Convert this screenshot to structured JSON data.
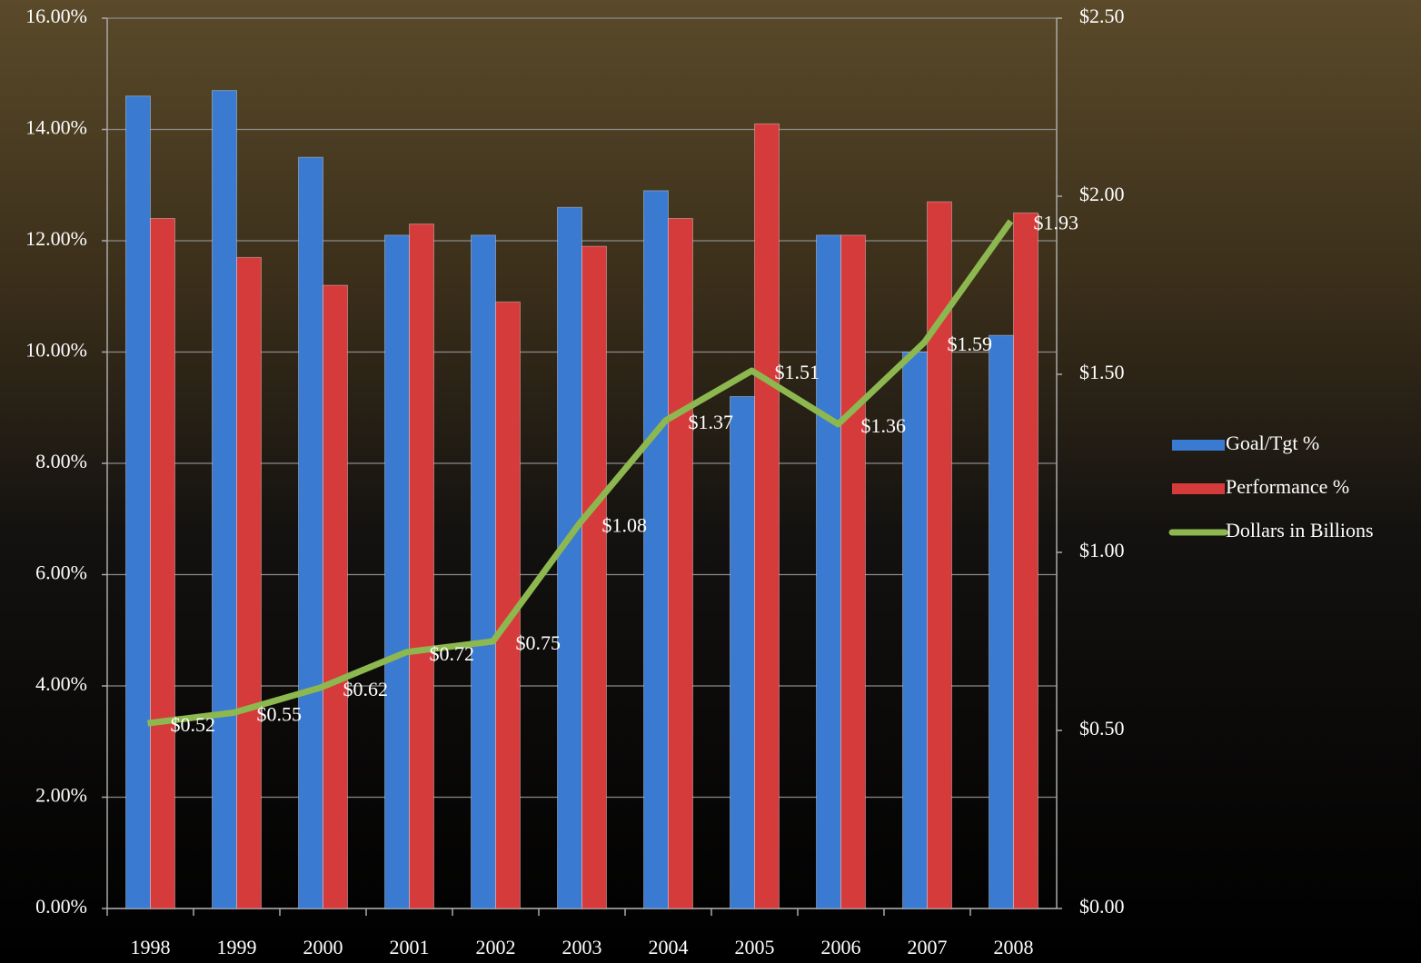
{
  "chart_data": {
    "type": "bar",
    "categories": [
      "1998",
      "1999",
      "2000",
      "2001",
      "2002",
      "2003",
      "2004",
      "2005",
      "2006",
      "2007",
      "2008"
    ],
    "series": [
      {
        "name": "Goal/Tgt %",
        "color": "#3a7ad0",
        "values": [
          14.6,
          14.7,
          13.5,
          12.1,
          12.1,
          12.6,
          12.9,
          9.2,
          12.1,
          10.0,
          10.3
        ]
      },
      {
        "name": "Performance %",
        "color": "#d63b3b",
        "values": [
          12.4,
          11.7,
          11.2,
          12.3,
          10.9,
          11.9,
          12.4,
          14.1,
          12.1,
          12.7,
          12.5
        ]
      },
      {
        "name": "Dollars in Billions",
        "color": "#8db84f",
        "type": "line",
        "axis": "y2",
        "values": [
          0.52,
          0.55,
          0.62,
          0.72,
          0.75,
          1.08,
          1.37,
          1.51,
          1.36,
          1.59,
          1.93
        ],
        "value_labels": [
          "$0.52",
          "$0.55",
          "$0.62",
          "$0.72",
          "$0.75",
          "$1.08",
          "$1.37",
          "$1.51",
          "$1.36",
          "$1.59",
          "$1.93"
        ]
      }
    ],
    "ylim": [
      0,
      16
    ],
    "yticks": [
      {
        "value": 0,
        "label": "0.00%"
      },
      {
        "value": 2,
        "label": "2.00%"
      },
      {
        "value": 4,
        "label": "4.00%"
      },
      {
        "value": 6,
        "label": "6.00%"
      },
      {
        "value": 8,
        "label": "8.00%"
      },
      {
        "value": 10,
        "label": "10.00%"
      },
      {
        "value": 12,
        "label": "12.00%"
      },
      {
        "value": 14,
        "label": "14.00%"
      },
      {
        "value": 16,
        "label": "16.00%"
      }
    ],
    "y2lim": [
      0,
      2.5
    ],
    "y2ticks": [
      {
        "value": 0,
        "label": "$0.00"
      },
      {
        "value": 0.5,
        "label": "$0.50"
      },
      {
        "value": 1,
        "label": "$1.00"
      },
      {
        "value": 1.5,
        "label": "$1.50"
      },
      {
        "value": 2,
        "label": "$2.00"
      },
      {
        "value": 2.5,
        "label": "$2.50"
      }
    ],
    "grid": true,
    "legend": "right"
  }
}
